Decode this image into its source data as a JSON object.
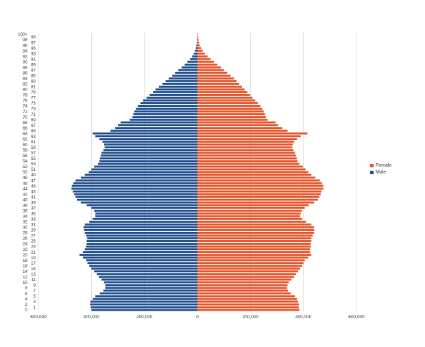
{
  "colors": {
    "male": "#1f4e8c",
    "female": "#e8542a",
    "grid": "#d8d8d8",
    "text": "#333333"
  },
  "legend": [
    {
      "label": "Female",
      "color": "#e8542a"
    },
    {
      "label": "Male",
      "color": "#1f4e8c"
    }
  ],
  "chart_data": {
    "type": "bar",
    "orientation": "horizontal",
    "xlim": [
      -600000,
      600000
    ],
    "xticks": [
      {
        "value": -600000,
        "label": "600,000"
      },
      {
        "value": -400000,
        "label": "400,000"
      },
      {
        "value": -200000,
        "label": "200,000"
      },
      {
        "value": 0,
        "label": "0"
      },
      {
        "value": 200000,
        "label": "200,000"
      },
      {
        "value": 400000,
        "label": "400,000"
      },
      {
        "value": 600000,
        "label": "600,000"
      }
    ],
    "grid": true,
    "legend_position": "right",
    "categories": [
      "0",
      "1",
      "2",
      "3",
      "4",
      "5",
      "6",
      "7",
      "8",
      "9",
      "10",
      "11",
      "12",
      "13",
      "14",
      "15",
      "16",
      "17",
      "18",
      "19",
      "20",
      "21",
      "22",
      "23",
      "24",
      "25",
      "26",
      "27",
      "28",
      "29",
      "30",
      "31",
      "32",
      "33",
      "34",
      "35",
      "36",
      "37",
      "38",
      "39",
      "40",
      "41",
      "42",
      "43",
      "44",
      "45",
      "46",
      "47",
      "48",
      "49",
      "50",
      "51",
      "52",
      "53",
      "54",
      "55",
      "56",
      "57",
      "58",
      "59",
      "60",
      "61",
      "62",
      "63",
      "64",
      "65",
      "66",
      "67",
      "68",
      "69",
      "70",
      "71",
      "72",
      "73",
      "74",
      "75",
      "76",
      "77",
      "78",
      "79",
      "80",
      "81",
      "82",
      "83",
      "84",
      "85",
      "86",
      "87",
      "88",
      "89",
      "90",
      "91",
      "92",
      "93",
      "94",
      "95",
      "96",
      "97",
      "98",
      "99",
      "100+"
    ],
    "series": [
      {
        "name": "Male",
        "values": [
          400000,
          402000,
          405000,
          404000,
          395000,
          385000,
          368000,
          355000,
          348000,
          348000,
          352000,
          362000,
          372000,
          380000,
          390000,
          400000,
          408000,
          415000,
          420000,
          432000,
          445000,
          432000,
          425000,
          420000,
          418000,
          418000,
          416000,
          420000,
          425000,
          428000,
          430000,
          425000,
          408000,
          395000,
          385000,
          385000,
          390000,
          400000,
          418000,
          440000,
          455000,
          460000,
          465000,
          470000,
          475000,
          474000,
          468000,
          460000,
          440000,
          425000,
          410000,
          400000,
          390000,
          375000,
          370000,
          368000,
          365000,
          362000,
          355000,
          350000,
          352000,
          358000,
          370000,
          385000,
          395000,
          328000,
          310000,
          300000,
          290000,
          255000,
          245000,
          242000,
          238000,
          232000,
          225000,
          215000,
          205000,
          192000,
          180000,
          168000,
          158000,
          145000,
          132000,
          120000,
          108000,
          95000,
          85000,
          72000,
          60000,
          48000,
          38000,
          28000,
          20000,
          14000,
          9000,
          6000,
          4000,
          2500,
          1500,
          800,
          500
        ]
      },
      {
        "name": "Female",
        "values": [
          385000,
          382000,
          383000,
          380000,
          375000,
          368000,
          352000,
          342000,
          338000,
          340000,
          345000,
          355000,
          365000,
          372000,
          380000,
          388000,
          395000,
          400000,
          405000,
          418000,
          430000,
          425000,
          425000,
          428000,
          428000,
          430000,
          430000,
          435000,
          440000,
          440000,
          440000,
          430000,
          410000,
          395000,
          388000,
          390000,
          395000,
          405000,
          420000,
          440000,
          455000,
          460000,
          465000,
          468000,
          475000,
          475000,
          470000,
          462000,
          445000,
          430000,
          418000,
          408000,
          398000,
          385000,
          378000,
          375000,
          372000,
          368000,
          362000,
          358000,
          360000,
          365000,
          375000,
          390000,
          415000,
          340000,
          320000,
          305000,
          295000,
          265000,
          258000,
          255000,
          250000,
          245000,
          238000,
          228000,
          218000,
          208000,
          198000,
          188000,
          178000,
          168000,
          158000,
          148000,
          138000,
          125000,
          112000,
          100000,
          88000,
          75000,
          62000,
          50000,
          38000,
          28000,
          20000,
          14000,
          9000,
          6000,
          4000,
          2500,
          1500
        ]
      }
    ]
  }
}
